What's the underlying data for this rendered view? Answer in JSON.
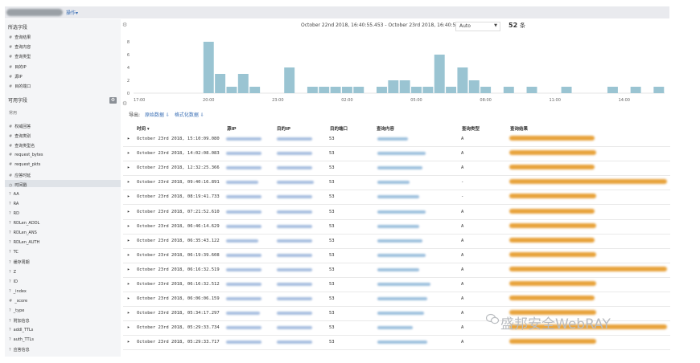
{
  "topbar": {
    "menu_label": "操作▾"
  },
  "sidebar": {
    "selected_title": "所选字段",
    "selected_fields": [
      {
        "icon": "#",
        "label": "查询结果"
      },
      {
        "icon": "#",
        "label": "查询内容"
      },
      {
        "icon": "#",
        "label": "查询类型"
      },
      {
        "icon": "#",
        "label": "目的IP"
      },
      {
        "icon": "#",
        "label": "源IP"
      },
      {
        "icon": "#",
        "label": "目的端口"
      }
    ],
    "available_title": "可用字段",
    "popular_label": "常用",
    "available_fields": [
      {
        "icon": "#",
        "label": "权威回答"
      },
      {
        "icon": "#",
        "label": "查询类别"
      },
      {
        "icon": "#",
        "label": "查询类型名"
      },
      {
        "icon": "#",
        "label": "request_bytes"
      },
      {
        "icon": "#",
        "label": "request_pkts"
      },
      {
        "icon": "#",
        "label": "应答时延"
      },
      {
        "icon": "◷",
        "label": "时间戳"
      },
      {
        "icon": "?",
        "label": "AA"
      },
      {
        "icon": "?",
        "label": "RA"
      },
      {
        "icon": "?",
        "label": "RD"
      },
      {
        "icon": "?",
        "label": "RDLen_ADDL"
      },
      {
        "icon": "?",
        "label": "RDLen_ANS"
      },
      {
        "icon": "?",
        "label": "RDLen_AUTH"
      },
      {
        "icon": "?",
        "label": "TC"
      },
      {
        "icon": "?",
        "label": "缓存周期"
      },
      {
        "icon": "?",
        "label": "Z"
      },
      {
        "icon": "?",
        "label": "ID"
      },
      {
        "icon": "?",
        "label": "_index"
      },
      {
        "icon": "#",
        "label": "_score"
      },
      {
        "icon": "?",
        "label": "_type"
      },
      {
        "icon": "?",
        "label": "附加信息"
      },
      {
        "icon": "?",
        "label": "addl_TTLs"
      },
      {
        "icon": "?",
        "label": "auth_TTLs"
      },
      {
        "icon": "?",
        "label": "应答信息"
      }
    ]
  },
  "histogram": {
    "date_range": "October 22nd 2018, 16:40:55.453 - October 23rd 2018, 16:40:55.453 —",
    "interval": "Auto",
    "hit_count": "52",
    "hit_unit": "条"
  },
  "chart_data": {
    "type": "bar",
    "bar_color": "#9ac4d2",
    "ylim": [
      0,
      9
    ],
    "yticks": [
      "0",
      "2",
      "4",
      "6",
      "8"
    ],
    "xticks": [
      {
        "label": "17:00",
        "at": 0.5
      },
      {
        "label": "20:00",
        "at": 6.5
      },
      {
        "label": "23:00",
        "at": 12.5
      },
      {
        "label": "02:00",
        "at": 18.5
      },
      {
        "label": "05:00",
        "at": 24.5
      },
      {
        "label": "08:00",
        "at": 30.5
      },
      {
        "label": "11:00",
        "at": 36.5
      },
      {
        "label": "14:00",
        "at": 42.5
      }
    ],
    "bins": 46,
    "values": [
      0,
      0,
      0,
      0,
      0,
      0,
      8,
      3,
      1,
      3,
      1,
      0,
      0,
      4,
      0,
      1,
      1,
      1,
      1,
      1,
      0,
      1,
      2,
      2,
      1,
      1,
      6,
      1,
      4,
      2,
      1,
      0,
      1,
      0,
      1,
      0,
      0,
      1,
      0,
      0,
      0,
      1,
      0,
      1,
      0,
      1
    ]
  },
  "export": {
    "label": "导出:",
    "raw": "原始数据 ⇩",
    "formatted": "格式化数据 ⇩"
  },
  "table": {
    "headers": [
      "时间 ▾",
      "源IP",
      "目的IP",
      "目的端口",
      "查询内容",
      "查询类型",
      "查询结果"
    ],
    "rows": [
      {
        "time": "October 23rd 2018, 15:10:09.080",
        "port": "53",
        "type": "A"
      },
      {
        "time": "October 23rd 2018, 14:02:08.083",
        "port": "53",
        "type": "A"
      },
      {
        "time": "October 23rd 2018, 12:32:25.366",
        "port": "53",
        "type": "A"
      },
      {
        "time": "October 23rd 2018, 09:40:16.891",
        "port": "53",
        "type": "-"
      },
      {
        "time": "October 23rd 2018, 08:19:41.733",
        "port": "53",
        "type": "-"
      },
      {
        "time": "October 23rd 2018, 07:21:52.610",
        "port": "53",
        "type": "A"
      },
      {
        "time": "October 23rd 2018, 06:46:14.629",
        "port": "53",
        "type": "A"
      },
      {
        "time": "October 23rd 2018, 06:35:43.122",
        "port": "53",
        "type": "A"
      },
      {
        "time": "October 23rd 2018, 06:19:39.608",
        "port": "53",
        "type": "A"
      },
      {
        "time": "October 23rd 2018, 06:16:32.519",
        "port": "53",
        "type": "A"
      },
      {
        "time": "October 23rd 2018, 06:16:32.512",
        "port": "53",
        "type": "A"
      },
      {
        "time": "October 23rd 2018, 06:06:06.159",
        "port": "53",
        "type": "A"
      },
      {
        "time": "October 23rd 2018, 05:34:17.297",
        "port": "53",
        "type": "A"
      },
      {
        "time": "October 23rd 2018, 05:29:33.734",
        "port": "53",
        "type": "A"
      },
      {
        "time": "October 23rd 2018, 05:29:33.717",
        "port": "53",
        "type": "A"
      }
    ]
  },
  "watermark": "盛邦安全WebRAY"
}
